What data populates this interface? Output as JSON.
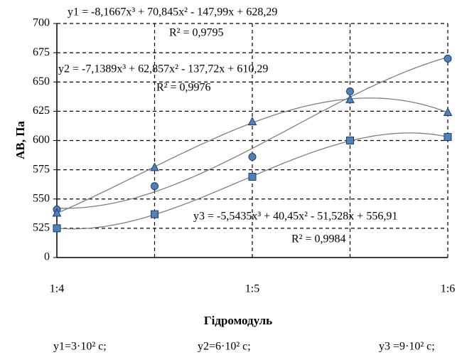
{
  "chart_data": {
    "type": "line",
    "ylabel": "AB, Па",
    "xlabel": "Гідромодуль",
    "categories": [
      "1:4",
      null,
      "1:5",
      null,
      "1:6"
    ],
    "ylim": [
      0,
      700
    ],
    "axis_break": [
      0,
      500
    ],
    "yticks": [
      0,
      525,
      550,
      575,
      600,
      625,
      650,
      675,
      700
    ],
    "grid": true,
    "series": [
      {
        "name": "y1",
        "marker": "circle",
        "color": "#4f81bd",
        "values": [
          541,
          561,
          586,
          642,
          670
        ]
      },
      {
        "name": "y2",
        "marker": "triangle",
        "color": "#4f81bd",
        "values": [
          538,
          577,
          616,
          635,
          624
        ]
      },
      {
        "name": "y3",
        "marker": "square",
        "color": "#4f81bd",
        "values": [
          525,
          537,
          569,
          600,
          603
        ]
      }
    ],
    "annotations": [
      "y1 = -8,1667x³ + 70,845x² - 147,99x + 628,29",
      "R² = 0,9795",
      "y2 = -7,1389x³ + 62,857x² - 137,72x + 610,29",
      "R² = 0,9976",
      "y3 = -5,5435x³ + 40,45x² - 51,528x + 556,91",
      "R² = 0,9984"
    ],
    "footnotes": [
      "y1=3·10² c;",
      "y2=6·10² c;",
      "y3 =9·10² c;"
    ]
  }
}
